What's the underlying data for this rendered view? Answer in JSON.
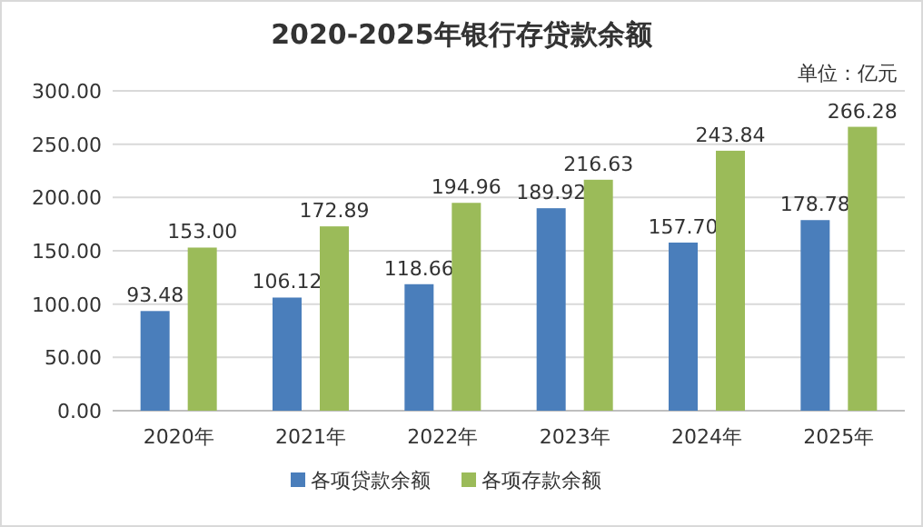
{
  "chart_data": {
    "type": "bar",
    "title": "2020-2025年银行存贷款余额",
    "annotations": [
      "单位：亿元"
    ],
    "categories": [
      "2020年",
      "2021年",
      "2022年",
      "2023年",
      "2024年",
      "2025年"
    ],
    "series": [
      {
        "name": "各项贷款余额",
        "color": "#4a7ebb",
        "values": [
          93.48,
          106.12,
          118.66,
          189.92,
          157.7,
          178.78
        ],
        "value_labels": [
          "93.48",
          "106.12",
          "118.66",
          "189.92",
          "157.70",
          "178.78"
        ]
      },
      {
        "name": "各项存款余额",
        "color": "#9bbb59",
        "values": [
          153.0,
          172.89,
          194.96,
          216.63,
          243.84,
          266.28
        ],
        "value_labels": [
          "153.00",
          "172.89",
          "194.96",
          "216.63",
          "243.84",
          "266.28"
        ]
      }
    ],
    "ylim": [
      0,
      300
    ],
    "yticks": [
      {
        "value": 0,
        "label": "0.00"
      },
      {
        "value": 50,
        "label": "50.00"
      },
      {
        "value": 100,
        "label": "100.00"
      },
      {
        "value": 150,
        "label": "150.00"
      },
      {
        "value": 200,
        "label": "200.00"
      },
      {
        "value": 250,
        "label": "250.00"
      },
      {
        "value": 300,
        "label": "300.00"
      }
    ],
    "grid": "y",
    "legend": "bottom"
  }
}
